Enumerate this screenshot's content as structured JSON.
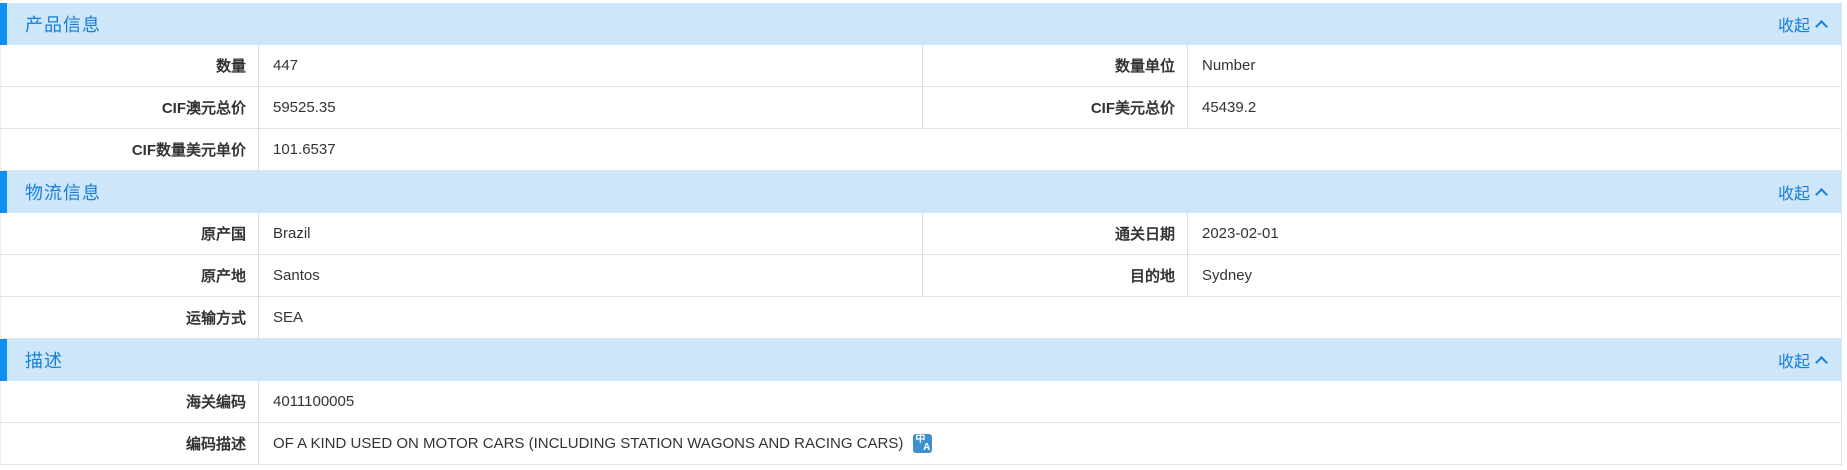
{
  "colors": {
    "header_background": "#cde6fa",
    "accent_bar": "#0e8ff2",
    "title_link_blue": "#157fd9",
    "row_border": "#e3e3e3",
    "translate_icon_blue": "#3d8fce"
  },
  "translate_icon": {
    "name": "translate-icon",
    "glyph_top": "中",
    "glyph_bottom": "A"
  },
  "sections": [
    {
      "title": "产品信息",
      "collapse_label": "收起",
      "rows": [
        {
          "left_label": "数量",
          "left_value": "447",
          "right_label": "数量单位",
          "right_value": "Number"
        },
        {
          "left_label": "CIF澳元总价",
          "left_value": "59525.35",
          "right_label": "CIF美元总价",
          "right_value": "45439.2"
        },
        {
          "left_label": "CIF数量美元单价",
          "left_value": "101.6537"
        }
      ]
    },
    {
      "title": "物流信息",
      "collapse_label": "收起",
      "rows": [
        {
          "left_label": "原产国",
          "left_value": "Brazil",
          "right_label": "通关日期",
          "right_value": "2023-02-01"
        },
        {
          "left_label": "原产地",
          "left_value": "Santos",
          "right_label": "目的地",
          "right_value": "Sydney"
        },
        {
          "left_label": "运输方式",
          "left_value": "SEA"
        }
      ]
    },
    {
      "title": "描述",
      "collapse_label": "收起",
      "rows": [
        {
          "left_label": "海关编码",
          "left_value": "4011100005"
        },
        {
          "left_label": "编码描述",
          "left_value": "OF A KIND USED ON MOTOR CARS (INCLUDING STATION WAGONS AND RACING CARS)"
        }
      ]
    }
  ]
}
